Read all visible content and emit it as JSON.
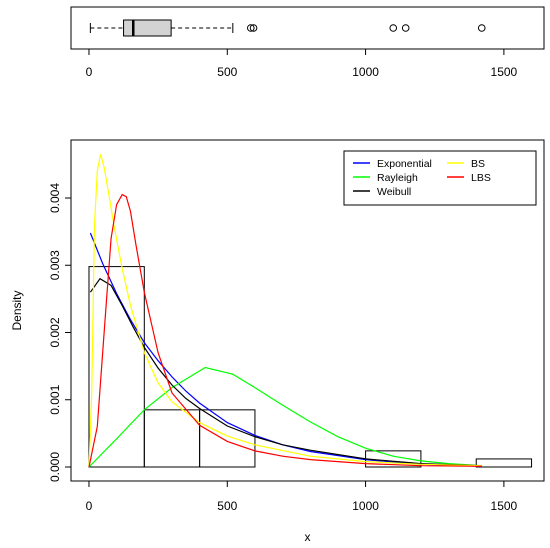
{
  "chart_data": [
    {
      "type": "boxplot",
      "orientation": "horizontal",
      "xlim": [
        -65,
        1645
      ],
      "x_ticks": [
        0,
        500,
        1000,
        1500
      ],
      "x_tick_labels": [
        "0",
        "500",
        "1000",
        "1500"
      ],
      "whisker_low": 5,
      "q1": 125,
      "median": 160,
      "q3": 297,
      "whisker_high": 520,
      "outliers": [
        585,
        595,
        1100,
        1145,
        1420
      ],
      "box_fill": "#d3d3d3"
    },
    {
      "type": "histogram-with-density-curves",
      "xlabel": "x",
      "ylabel": "Density",
      "xlim": [
        -65,
        1645
      ],
      "ylim": [
        0,
        0.0047
      ],
      "x_ticks": [
        0,
        500,
        1000,
        1500
      ],
      "x_tick_labels": [
        "0",
        "500",
        "1000",
        "1500"
      ],
      "y_ticks": [
        0,
        0.001,
        0.002,
        0.003,
        0.004
      ],
      "y_tick_labels": [
        "0.000",
        "0.001",
        "0.002",
        "0.003",
        "0.004"
      ],
      "histogram": {
        "bins": [
          {
            "from": 0,
            "to": 200,
            "density": 0.00298
          },
          {
            "from": 200,
            "to": 400,
            "density": 0.00085
          },
          {
            "from": 400,
            "to": 600,
            "density": 0.00085
          },
          {
            "from": 1000,
            "to": 1200,
            "density": 0.00024
          },
          {
            "from": 1400,
            "to": 1600,
            "density": 0.00012
          }
        ]
      },
      "legend": {
        "position": "top-right",
        "entries": [
          {
            "label": "Exponential",
            "color": "#0000ff"
          },
          {
            "label": "Rayleigh",
            "color": "#00ff00"
          },
          {
            "label": "Weibull",
            "color": "#000000"
          },
          {
            "label": "BS",
            "color": "#ffff00"
          },
          {
            "label": "LBS",
            "color": "#ff0000"
          }
        ]
      },
      "series": [
        {
          "name": "Exponential",
          "color": "#0000ff",
          "x": [
            5,
            50,
            100,
            150,
            200,
            250,
            300,
            350,
            400,
            500,
            600,
            700,
            800,
            1000,
            1200,
            1420
          ],
          "y": [
            0.00348,
            0.00302,
            0.00258,
            0.00219,
            0.00185,
            0.00158,
            0.00134,
            0.00113,
            0.00095,
            0.00066,
            0.00047,
            0.00033,
            0.00023,
            0.00011,
            4e-05,
            1e-05
          ]
        },
        {
          "name": "Rayleigh",
          "color": "#00ff00",
          "x": [
            0,
            100,
            200,
            300,
            420,
            520,
            600,
            700,
            800,
            900,
            1000,
            1100,
            1200,
            1300,
            1420
          ],
          "y": [
            0,
            0.00042,
            0.00085,
            0.00118,
            0.00148,
            0.00138,
            0.00118,
            0.00092,
            0.00067,
            0.00045,
            0.00028,
            0.00016,
            9e-05,
            5e-05,
            2e-05
          ]
        },
        {
          "name": "Weibull",
          "color": "#000000",
          "x": [
            5,
            40,
            80,
            120,
            160,
            200,
            250,
            300,
            350,
            400,
            500,
            600,
            700,
            800,
            1000,
            1200,
            1420
          ],
          "y": [
            0.0026,
            0.0028,
            0.0027,
            0.0024,
            0.00208,
            0.00178,
            0.00147,
            0.00122,
            0.00102,
            0.00087,
            0.00061,
            0.00045,
            0.00033,
            0.00025,
            0.00012,
            5e-05,
            2e-05
          ]
        },
        {
          "name": "BS",
          "color": "#ffff00",
          "x": [
            0,
            10,
            20,
            30,
            42,
            55,
            70,
            90,
            120,
            150,
            200,
            250,
            300,
            400,
            500,
            600,
            800,
            1000,
            1200,
            1420
          ],
          "y": [
            0,
            0.0011,
            0.0036,
            0.0044,
            0.00465,
            0.00445,
            0.0041,
            0.0036,
            0.00295,
            0.0024,
            0.0017,
            0.00125,
            0.00097,
            0.00066,
            0.00046,
            0.00033,
            0.00016,
            8e-05,
            4e-05,
            2e-05
          ]
        },
        {
          "name": "LBS",
          "color": "#ff0000",
          "x": [
            0,
            30,
            60,
            80,
            100,
            120,
            135,
            150,
            170,
            200,
            250,
            300,
            400,
            500,
            600,
            700,
            800,
            1000,
            1200,
            1420
          ],
          "y": [
            0,
            0.0006,
            0.0023,
            0.0034,
            0.0039,
            0.00405,
            0.00402,
            0.0038,
            0.0033,
            0.0026,
            0.0017,
            0.0011,
            0.00062,
            0.00038,
            0.00024,
            0.00016,
            0.00011,
            5e-05,
            2e-05,
            1e-05
          ]
        }
      ]
    }
  ]
}
